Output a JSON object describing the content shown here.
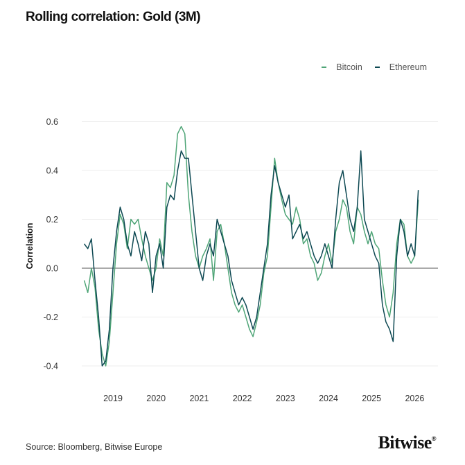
{
  "title": "Rolling correlation: Gold (3M)",
  "source": "Source: Bloomberg, Bitwise Europe",
  "logo_text": "Bitwise",
  "logo_mark": "®",
  "colors": {
    "bitcoin": "#4fa577",
    "ethereum": "#0d4852",
    "zero_line": "#555555",
    "grid": "#eeeeee"
  },
  "chart_data": {
    "type": "line",
    "title": "Rolling correlation: Gold (3M)",
    "xlabel": "",
    "ylabel": "Correlation",
    "ylim": [
      -0.45,
      0.62
    ],
    "yticks": [
      0.6,
      0.4,
      0.2,
      0.0,
      -0.2,
      -0.4
    ],
    "ytick_labels": [
      "0.6",
      "0.4",
      "0.2",
      "0.0",
      "-0.2",
      "-0.4"
    ],
    "xticks": [
      "2019",
      "2020",
      "2021",
      "2022",
      "2023",
      "2024",
      "2025",
      "2026"
    ],
    "grid": true,
    "legend_position": "top-right",
    "x": [
      "2018-05",
      "2018-06",
      "2018-07",
      "2018-08",
      "2018-09",
      "2018-10",
      "2018-11",
      "2018-12",
      "2019-01",
      "2019-02",
      "2019-03",
      "2019-04",
      "2019-05",
      "2019-06",
      "2019-07",
      "2019-08",
      "2019-09",
      "2019-10",
      "2019-11",
      "2019-12",
      "2020-01",
      "2020-02",
      "2020-03",
      "2020-04",
      "2020-05",
      "2020-06",
      "2020-07",
      "2020-08",
      "2020-09",
      "2020-10",
      "2020-11",
      "2020-12",
      "2021-01",
      "2021-02",
      "2021-03",
      "2021-04",
      "2021-05",
      "2021-06",
      "2021-07",
      "2021-08",
      "2021-09",
      "2021-10",
      "2021-11",
      "2021-12",
      "2022-01",
      "2022-02",
      "2022-03",
      "2022-04",
      "2022-05",
      "2022-06",
      "2022-07",
      "2022-08",
      "2022-09",
      "2022-10",
      "2022-11",
      "2022-12",
      "2023-01",
      "2023-02",
      "2023-03",
      "2023-04",
      "2023-05",
      "2023-06",
      "2023-07",
      "2023-08",
      "2023-09",
      "2023-10",
      "2023-11",
      "2023-12",
      "2024-01",
      "2024-02",
      "2024-03",
      "2024-04",
      "2024-05",
      "2024-06",
      "2024-07",
      "2024-08",
      "2024-09",
      "2024-10",
      "2024-11",
      "2024-12",
      "2025-01",
      "2025-02",
      "2025-03",
      "2025-04",
      "2025-05",
      "2025-06",
      "2025-07",
      "2025-08",
      "2025-09",
      "2025-10",
      "2025-11",
      "2025-12",
      "2026-01",
      "2026-02"
    ],
    "series": [
      {
        "name": "Bitcoin",
        "values": [
          -0.05,
          -0.1,
          0.0,
          -0.08,
          -0.25,
          -0.35,
          -0.4,
          -0.3,
          -0.1,
          0.1,
          0.22,
          0.18,
          0.08,
          0.2,
          0.18,
          0.2,
          0.12,
          0.05,
          0.0,
          -0.05,
          0.0,
          0.12,
          0.05,
          0.35,
          0.33,
          0.38,
          0.55,
          0.58,
          0.55,
          0.3,
          0.15,
          0.05,
          0.0,
          0.05,
          0.08,
          0.12,
          -0.05,
          0.15,
          0.18,
          0.1,
          0.0,
          -0.1,
          -0.15,
          -0.18,
          -0.15,
          -0.2,
          -0.25,
          -0.28,
          -0.22,
          -0.15,
          -0.02,
          0.05,
          0.25,
          0.45,
          0.35,
          0.28,
          0.22,
          0.2,
          0.18,
          0.25,
          0.2,
          0.1,
          0.12,
          0.05,
          0.02,
          -0.05,
          -0.02,
          0.05,
          0.1,
          0.02,
          0.15,
          0.2,
          0.28,
          0.25,
          0.15,
          0.1,
          0.25,
          0.22,
          0.15,
          0.1,
          0.15,
          0.1,
          0.08,
          -0.05,
          -0.15,
          -0.2,
          -0.1,
          0.1,
          0.2,
          0.18,
          0.05,
          0.02,
          0.05,
          0.28
        ]
      },
      {
        "name": "Ethereum",
        "values": [
          0.1,
          0.08,
          0.12,
          -0.05,
          -0.2,
          -0.4,
          -0.38,
          -0.25,
          0.0,
          0.15,
          0.25,
          0.2,
          0.1,
          0.05,
          0.15,
          0.1,
          0.03,
          0.15,
          0.1,
          -0.1,
          0.05,
          0.1,
          0.0,
          0.25,
          0.3,
          0.28,
          0.4,
          0.48,
          0.45,
          0.45,
          0.3,
          0.15,
          0.0,
          -0.05,
          0.05,
          0.1,
          0.05,
          0.2,
          0.15,
          0.1,
          0.05,
          -0.05,
          -0.1,
          -0.15,
          -0.12,
          -0.15,
          -0.2,
          -0.25,
          -0.2,
          -0.1,
          0.0,
          0.1,
          0.3,
          0.42,
          0.35,
          0.3,
          0.25,
          0.3,
          0.12,
          0.15,
          0.18,
          0.12,
          0.15,
          0.1,
          0.05,
          0.02,
          0.05,
          0.1,
          0.05,
          0.0,
          0.2,
          0.35,
          0.4,
          0.3,
          0.2,
          0.15,
          0.25,
          0.48,
          0.2,
          0.15,
          0.1,
          0.05,
          0.02,
          -0.15,
          -0.22,
          -0.25,
          -0.3,
          0.05,
          0.2,
          0.15,
          0.05,
          0.1,
          0.05,
          0.32
        ]
      }
    ]
  }
}
